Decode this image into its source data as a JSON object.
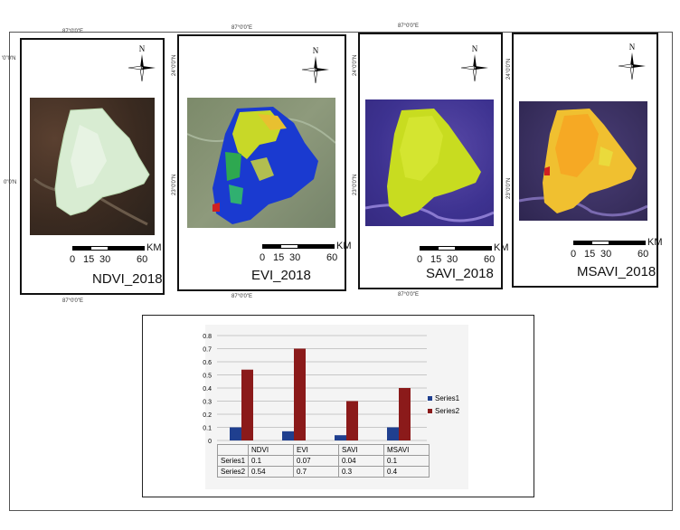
{
  "panels": [
    {
      "title": "NDVI_2018",
      "coord_top": "87°0'0\"E",
      "coord_bottom": "87°0'0\"E",
      "coord_left_top": "'0\"0'N",
      "coord_left_mid": "0\"0'N",
      "scale": {
        "ticks": [
          "0",
          "15",
          "30",
          "60"
        ],
        "unit": "KM"
      }
    },
    {
      "title": "EVI_2018",
      "coord_top": "87°0'0\"E",
      "coord_bottom": "87°0'0\"E",
      "coord_left_top": "24°0'0\"N",
      "coord_left_mid": "23°0'0\"N",
      "scale": {
        "ticks": [
          "0",
          "15",
          "30",
          "60"
        ],
        "unit": "KM"
      }
    },
    {
      "title": "SAVI_2018",
      "coord_top": "87°0'0\"E",
      "coord_bottom": "87°0'0\"E",
      "coord_left_top": "24°0'0\"N",
      "coord_left_mid": "23°0'0\"N",
      "scale": {
        "ticks": [
          "0",
          "15",
          "30",
          "60"
        ],
        "unit": "KM"
      }
    },
    {
      "title": "MSAVI_2018",
      "coord_left_top": "24°0'0\"N",
      "coord_left_mid": "23°0'0\"N",
      "scale": {
        "ticks": [
          "0",
          "15",
          "30",
          "60"
        ],
        "unit": "KM"
      }
    }
  ],
  "north_label": "N",
  "chart_data": {
    "type": "bar",
    "categories": [
      "NDVI",
      "EVI",
      "SAVI",
      "MSAVI"
    ],
    "series": [
      {
        "name": "Series1",
        "values": [
          0.1,
          0.07,
          0.04,
          0.1
        ],
        "color": "#1f3f8f"
      },
      {
        "name": "Series2",
        "values": [
          0.54,
          0.7,
          0.3,
          0.4
        ],
        "color": "#8b1a1a"
      }
    ],
    "y_ticks": [
      "0",
      "0.1",
      "0.2",
      "0.3",
      "0.4",
      "0.5",
      "0.6",
      "0.7",
      "0.8"
    ],
    "ylim": [
      0,
      0.8
    ],
    "grid": true,
    "legend": "right",
    "table": {
      "rows": [
        {
          "label": "Series1",
          "cells": [
            "0.1",
            "0.07",
            "0.04",
            "0.1"
          ]
        },
        {
          "label": "Series2",
          "cells": [
            "0.54",
            "0.7",
            "0.3",
            "0.4"
          ]
        }
      ]
    }
  }
}
